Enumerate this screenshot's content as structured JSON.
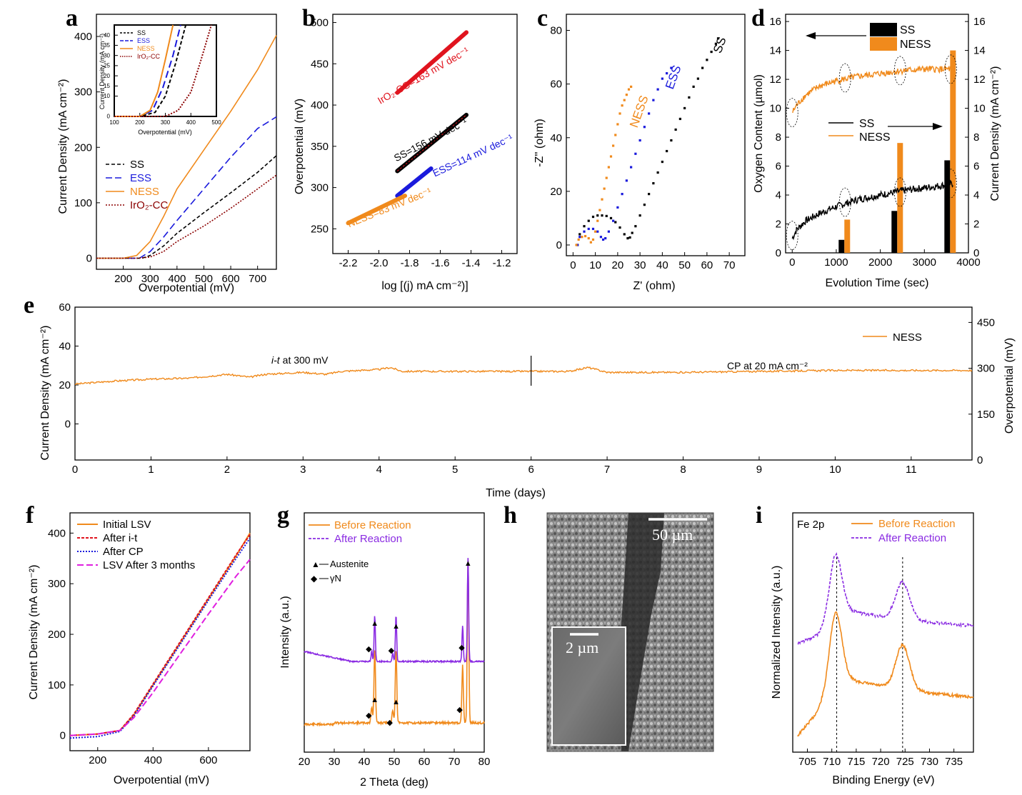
{
  "panels": {
    "a": {
      "letter": "a"
    },
    "b": {
      "letter": "b"
    },
    "c": {
      "letter": "c"
    },
    "d": {
      "letter": "d"
    },
    "e": {
      "letter": "e"
    },
    "f": {
      "letter": "f"
    },
    "g": {
      "letter": "g"
    },
    "h": {
      "letter": "h"
    },
    "i": {
      "letter": "i"
    }
  },
  "colors": {
    "SS": "#000000",
    "ESS": "#1a1adc",
    "NESS": "#f08a1c",
    "IrO2": "#8b0000",
    "red": "#e0141e",
    "purple": "#8a2be2",
    "magenta": "#e020e0"
  },
  "chart_data": [
    {
      "id": "a",
      "type": "line",
      "xlabel": "Overpotential (mV)",
      "ylabel": "Current Density (mA cm⁻²)",
      "xlim": [
        100,
        770
      ],
      "ylim": [
        -20,
        440
      ],
      "xticks": [
        "200",
        "300",
        "400",
        "500",
        "600",
        "700"
      ],
      "yticks": [
        "0",
        "100",
        "200",
        "300",
        "400"
      ],
      "series": [
        {
          "name": "SS",
          "x": [
            100,
            200,
            270,
            300,
            350,
            400,
            500,
            600,
            700,
            770
          ],
          "values": [
            0,
            0,
            0,
            5,
            22,
            45,
            82,
            118,
            155,
            185
          ]
        },
        {
          "name": "ESS",
          "x": [
            100,
            200,
            260,
            300,
            350,
            400,
            500,
            600,
            700,
            770
          ],
          "values": [
            0,
            0,
            0,
            12,
            38,
            68,
            125,
            182,
            234,
            255
          ]
        },
        {
          "name": "NESS",
          "x": [
            100,
            200,
            250,
            300,
            350,
            400,
            500,
            600,
            700,
            770
          ],
          "values": [
            0,
            0,
            5,
            30,
            75,
            125,
            195,
            265,
            340,
            402
          ]
        },
        {
          "name": "IrO₂-CC",
          "x": [
            100,
            250,
            300,
            350,
            400,
            500,
            600,
            700,
            770
          ],
          "values": [
            0,
            0,
            2,
            12,
            30,
            58,
            90,
            125,
            150
          ]
        }
      ],
      "inset": {
        "xlabel": "Overpotential (mV)",
        "ylabel": "Current Density (mA cm⁻²)",
        "xlim": [
          100,
          500
        ],
        "ylim": [
          0,
          45
        ],
        "xticks": [
          "100",
          "200",
          "300",
          "400",
          "500"
        ],
        "yticks": [
          "0",
          "10",
          "15",
          "20",
          "25",
          "30",
          "35",
          "40"
        ],
        "legend": [
          "SS",
          "ESS",
          "NESS",
          "IrO₂-CC"
        ]
      }
    },
    {
      "id": "b",
      "type": "line",
      "xlabel": "log [(j) mA cm⁻²)]",
      "ylabel": "Overpotential (mV)",
      "xlim": [
        -2.3,
        -1.1
      ],
      "ylim": [
        220,
        510
      ],
      "xticks": [
        "-2.2",
        "-2.0",
        "-1.8",
        "-1.6",
        "-1.4",
        "-1.2"
      ],
      "yticks": [
        "250",
        "300",
        "350",
        "400",
        "450",
        "500"
      ],
      "series": [
        {
          "name": "IrO₂-CC",
          "label": "IrO₂-CC=163 mV dec⁻¹",
          "x": [
            -1.88,
            -1.43
          ],
          "values": [
            415,
            488
          ]
        },
        {
          "name": "SS",
          "label": "SS=156 mV dec⁻¹",
          "x": [
            -1.88,
            -1.43
          ],
          "values": [
            320,
            388
          ]
        },
        {
          "name": "ESS",
          "label": "ESS=114 mV dec⁻¹",
          "x": [
            -1.88,
            -1.66
          ],
          "values": [
            290,
            323
          ]
        },
        {
          "name": "NESS",
          "label": "NESS=83 mV dec⁻¹",
          "x": [
            -2.2,
            -1.83
          ],
          "values": [
            257,
            290
          ]
        }
      ]
    },
    {
      "id": "c",
      "type": "scatter",
      "xlabel": "Z' (ohm)",
      "ylabel": "-Z'' (ohm)",
      "xlim": [
        -3,
        77
      ],
      "ylim": [
        -4,
        86
      ],
      "xticks": [
        "0",
        "10",
        "20",
        "30",
        "40",
        "50",
        "60",
        "70"
      ],
      "yticks": [
        "0",
        "20",
        "40",
        "60",
        "80"
      ],
      "series": [
        {
          "name": "SS",
          "x": [
            2,
            3,
            5,
            7,
            9,
            11,
            13,
            15,
            17,
            19,
            21,
            23,
            24.5,
            25.5,
            26.5,
            28,
            30,
            32,
            34,
            36,
            38,
            40,
            42,
            44,
            46,
            48,
            50,
            52,
            54,
            56,
            58,
            60,
            62,
            64,
            65
          ],
          "values": [
            0,
            4,
            7,
            9,
            10.5,
            11,
            11,
            10.8,
            10,
            8.5,
            6.5,
            4,
            2.5,
            2.8,
            4.5,
            7,
            11,
            15,
            19,
            23,
            27,
            31,
            35,
            39,
            43,
            47,
            51,
            55,
            59,
            62,
            66,
            69,
            72,
            75,
            77
          ]
        },
        {
          "name": "ESS",
          "x": [
            2,
            3,
            5,
            7,
            9,
            11,
            12.5,
            13.5,
            14.5,
            16,
            18,
            20,
            22,
            24,
            26,
            28,
            30,
            32,
            34,
            36,
            38,
            40,
            42,
            44
          ],
          "values": [
            0,
            3,
            5,
            6,
            6,
            5,
            3,
            2,
            2.5,
            5,
            9,
            14,
            19,
            24,
            29,
            34,
            39,
            44,
            49,
            54,
            58,
            62,
            64,
            66
          ]
        },
        {
          "name": "NESS",
          "x": [
            1.5,
            2.5,
            4,
            5.5,
            7,
            8,
            9,
            10,
            11,
            12,
            13,
            14,
            15,
            16,
            17,
            18,
            19,
            20,
            21,
            22,
            23,
            24,
            25,
            26
          ],
          "values": [
            0,
            2,
            3,
            3.3,
            2.5,
            1,
            2,
            5,
            9,
            13,
            17,
            21,
            25,
            29,
            33,
            37,
            41,
            45,
            49,
            52,
            54,
            56,
            58,
            59
          ]
        }
      ]
    },
    {
      "id": "d",
      "type": "bar+line",
      "xlabel": "Evolution Time (sec)",
      "ylabel": "Oxygen Content (µmol)",
      "y2label": "Current Density (mA cm⁻²)",
      "xlim": [
        -150,
        4000
      ],
      "ylim": [
        0,
        16.5
      ],
      "y2lim": [
        0,
        16.5
      ],
      "xticks": [
        "0",
        "1000",
        "2000",
        "3000",
        "4000"
      ],
      "yticks": [
        "0",
        "2",
        "4",
        "6",
        "8",
        "10",
        "12",
        "14",
        "16"
      ],
      "bars": {
        "categories": [
          "1200",
          "2400",
          "3600"
        ],
        "series": [
          {
            "name": "SS",
            "values": [
              0.9,
              2.9,
              6.4
            ]
          },
          {
            "name": "NESS",
            "values": [
              2.3,
              7.6,
              14.0
            ]
          }
        ]
      },
      "lines": [
        {
          "name": "SS",
          "x": [
            0,
            100,
            300,
            600,
            1000,
            1500,
            2000,
            2500,
            3000,
            3500,
            3650
          ],
          "values": [
            1.0,
            1.6,
            2.2,
            2.7,
            3.2,
            3.7,
            4.0,
            4.3,
            4.5,
            4.7,
            4.8
          ]
        },
        {
          "name": "NESS",
          "x": [
            0,
            100,
            300,
            600,
            1000,
            1500,
            2000,
            2500,
            3000,
            3500,
            3650
          ],
          "values": [
            9.7,
            10.2,
            10.9,
            11.5,
            11.9,
            12.2,
            12.4,
            12.6,
            12.7,
            12.7,
            12.7
          ]
        }
      ],
      "legend_bars": [
        "SS",
        "NESS"
      ],
      "legend_lines": [
        "SS",
        "NESS"
      ]
    },
    {
      "id": "e",
      "type": "line",
      "xlabel": "Time (days)",
      "ylabel": "Current Density (mA cm⁻²)",
      "y2label": "Overpotential (mV)",
      "xlim": [
        0,
        11.8
      ],
      "ylim": [
        -20,
        60
      ],
      "y2lim": [
        0,
        500
      ],
      "xticks": [
        "0",
        "1",
        "2",
        "3",
        "4",
        "5",
        "6",
        "7",
        "8",
        "9",
        "10",
        "11"
      ],
      "yticks": [
        "0",
        "20",
        "40",
        "60"
      ],
      "y2ticks": [
        "0",
        "150",
        "300",
        "450"
      ],
      "series": [
        {
          "name": "NESS",
          "x": [
            0,
            0.5,
            1,
            1.5,
            2,
            2.3,
            2.5,
            3,
            3.3,
            3.5,
            4,
            4.15,
            4.3,
            5,
            5.5,
            6,
            6.5,
            6.75,
            7,
            8,
            9,
            10,
            11,
            11.8
          ],
          "values": [
            20.5,
            22,
            23,
            23.5,
            25.5,
            24,
            25.5,
            26.5,
            25.5,
            27,
            28,
            29,
            27,
            27,
            27,
            27,
            27,
            29,
            26.5,
            26.5,
            27,
            27.5,
            27.5,
            27.5
          ]
        }
      ],
      "annotations": {
        "left": "at 300 mV",
        "left_italic": "i-t",
        "right": "CP at 20 mA cm⁻²",
        "divider_x": 6
      }
    },
    {
      "id": "f",
      "type": "line",
      "xlabel": "Overpotential (mV)",
      "ylabel": "Current Density (mA cm⁻²)",
      "xlim": [
        100,
        750
      ],
      "ylim": [
        -30,
        440
      ],
      "xticks": [
        "200",
        "400",
        "600"
      ],
      "yticks": [
        "0",
        "100",
        "200",
        "300",
        "400"
      ],
      "series": [
        {
          "name": "Initial LSV",
          "x": [
            100,
            200,
            280,
            330,
            400,
            500,
            600,
            700,
            750
          ],
          "values": [
            0,
            3,
            10,
            40,
            100,
            185,
            270,
            355,
            400
          ]
        },
        {
          "name": "After i-t",
          "x": [
            100,
            200,
            280,
            330,
            400,
            500,
            600,
            700,
            750
          ],
          "values": [
            0,
            3,
            10,
            42,
            102,
            187,
            272,
            357,
            397
          ]
        },
        {
          "name": "After CP",
          "x": [
            100,
            200,
            280,
            330,
            400,
            500,
            600,
            700,
            750
          ],
          "values": [
            -5,
            -2,
            8,
            38,
            98,
            182,
            267,
            350,
            390
          ]
        },
        {
          "name": "LSV After 3 months",
          "x": [
            100,
            200,
            280,
            330,
            400,
            500,
            600,
            700,
            750
          ],
          "values": [
            0,
            3,
            10,
            35,
            85,
            163,
            240,
            315,
            348
          ]
        }
      ]
    },
    {
      "id": "g",
      "type": "line",
      "xlabel": "2 Theta (deg)",
      "ylabel": "Intensity (a.u.)",
      "xlim": [
        20,
        80
      ],
      "xticks": [
        "20",
        "30",
        "40",
        "50",
        "60",
        "70",
        "80"
      ],
      "series": [
        {
          "name": "Before Reaction",
          "peaks_2theta": [
            43.5,
            50.6,
            74.6
          ]
        },
        {
          "name": "After Reaction",
          "peaks_2theta": [
            43.5,
            50.6,
            74.6
          ]
        }
      ],
      "legend_markers": [
        {
          "symbol": "▲",
          "label": "Austenite"
        },
        {
          "symbol": "◆",
          "label": "γN"
        }
      ]
    },
    {
      "id": "i",
      "type": "line",
      "xlabel": "Binding Energy (eV)",
      "ylabel": "Normalized Intensity (a.u.)",
      "xlim": [
        702,
        739
      ],
      "xticks": [
        "705",
        "710",
        "715",
        "720",
        "725",
        "730",
        "735"
      ],
      "title": "Fe 2p",
      "reference_lines": [
        711,
        724.5
      ],
      "series": [
        {
          "name": "Before Reaction"
        },
        {
          "name": "After Reaction"
        }
      ]
    }
  ],
  "sem": {
    "scale_main": "50 µm",
    "scale_inset": "2 µm"
  }
}
